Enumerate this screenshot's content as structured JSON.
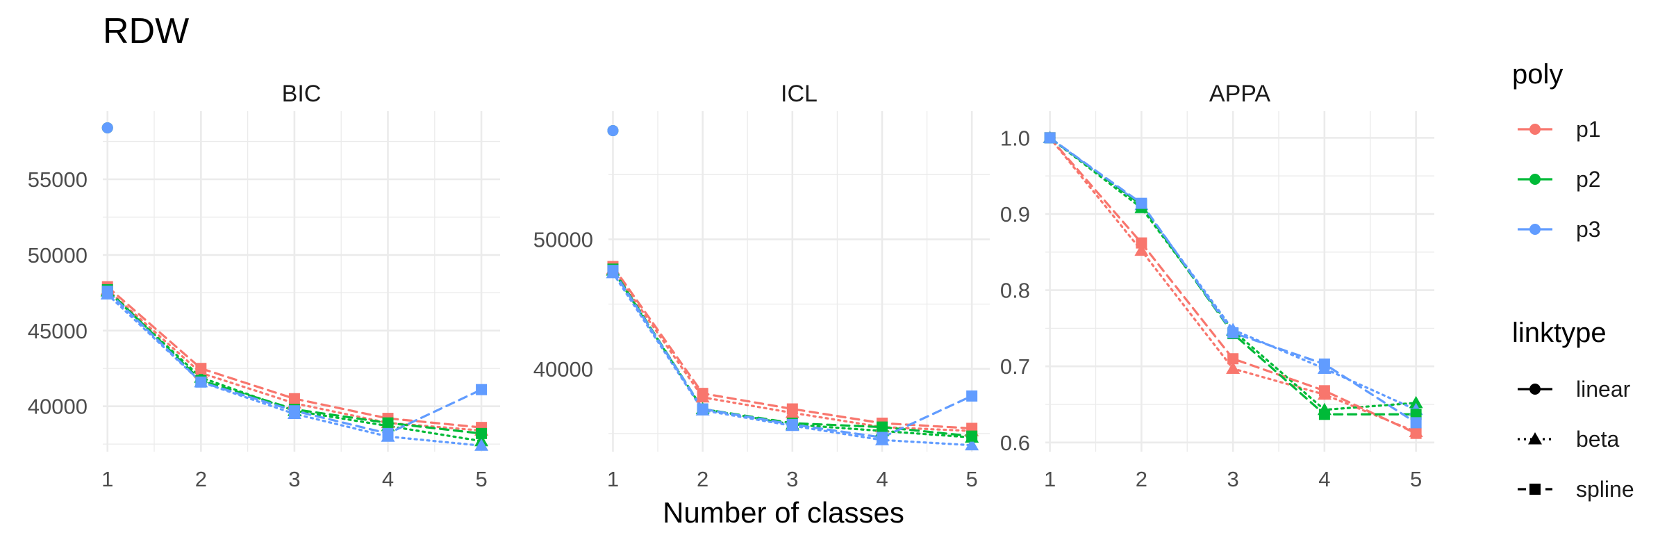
{
  "chart_data": {
    "type": "line",
    "title": "RDW",
    "xlabel": "Number of classes",
    "colors": {
      "p1": "#F8766D",
      "p2": "#00BA38",
      "p3": "#619CFF"
    },
    "legend": {
      "placement": "right",
      "poly_title": "poly",
      "poly_items": [
        "p1",
        "p2",
        "p3"
      ],
      "linktype_title": "linktype",
      "linktype_items": [
        {
          "label": "linear",
          "dash": "solid",
          "shape": "circle"
        },
        {
          "label": "beta",
          "dash": "dotted",
          "shape": "triangle"
        },
        {
          "label": "spline",
          "dash": "dashed",
          "shape": "square"
        }
      ]
    },
    "panels": [
      {
        "title": "BIC",
        "x": [
          1,
          2,
          3,
          4,
          5
        ],
        "xlim": [
          0.95,
          5.2
        ],
        "ylim": [
          37000,
          59500
        ],
        "y_ticks": [
          40000,
          45000,
          50000,
          55000
        ],
        "y_tick_labels": [
          "40000",
          "45000",
          "50000",
          "55000"
        ],
        "x_ticks": [
          1,
          2,
          3,
          4,
          5
        ],
        "x_tick_labels": [
          "1",
          "2",
          "3",
          "4",
          "5"
        ],
        "series": [
          {
            "poly": "p1",
            "linktype": "linear",
            "values": [
              58400,
              null,
              null,
              null,
              null
            ]
          },
          {
            "poly": "p2",
            "linktype": "linear",
            "values": [
              58400,
              null,
              null,
              null,
              null
            ]
          },
          {
            "poly": "p3",
            "linktype": "linear",
            "values": [
              58400,
              null,
              null,
              null,
              null
            ]
          },
          {
            "poly": "p1",
            "linktype": "beta",
            "values": [
              47700,
              42200,
              40200,
              38900,
              38400
            ]
          },
          {
            "poly": "p2",
            "linktype": "beta",
            "values": [
              47600,
              41900,
              39700,
              38700,
              37700
            ]
          },
          {
            "poly": "p3",
            "linktype": "beta",
            "values": [
              47400,
              41600,
              39500,
              38000,
              37400
            ]
          },
          {
            "poly": "p1",
            "linktype": "spline",
            "values": [
              47900,
              42500,
              40500,
              39200,
              38600
            ]
          },
          {
            "poly": "p2",
            "linktype": "spline",
            "values": [
              47700,
              41700,
              39800,
              38900,
              38200
            ]
          },
          {
            "poly": "p3",
            "linktype": "spline",
            "values": [
              47600,
              41600,
              39700,
              38200,
              41100
            ]
          }
        ]
      },
      {
        "title": "ICL",
        "x": [
          1,
          2,
          3,
          4,
          5
        ],
        "xlim": [
          0.95,
          5.2
        ],
        "ylim": [
          33600,
          59900
        ],
        "y_ticks": [
          40000,
          50000
        ],
        "y_tick_labels": [
          "40000",
          "50000"
        ],
        "x_ticks": [
          1,
          2,
          3,
          4,
          5
        ],
        "x_tick_labels": [
          "1",
          "2",
          "3",
          "4",
          "5"
        ],
        "series": [
          {
            "poly": "p1",
            "linktype": "linear",
            "values": [
              58400,
              null,
              null,
              null,
              null
            ]
          },
          {
            "poly": "p2",
            "linktype": "linear",
            "values": [
              58400,
              null,
              null,
              null,
              null
            ]
          },
          {
            "poly": "p3",
            "linktype": "linear",
            "values": [
              58400,
              null,
              null,
              null,
              null
            ]
          },
          {
            "poly": "p1",
            "linktype": "beta",
            "values": [
              47700,
              37800,
              36600,
              35500,
              35200
            ]
          },
          {
            "poly": "p2",
            "linktype": "beta",
            "values": [
              47600,
              36900,
              35700,
              35200,
              34700
            ]
          },
          {
            "poly": "p3",
            "linktype": "beta",
            "values": [
              47400,
              36800,
              35600,
              34500,
              34100
            ]
          },
          {
            "poly": "p1",
            "linktype": "spline",
            "values": [
              47900,
              38100,
              36900,
              35800,
              35400
            ]
          },
          {
            "poly": "p2",
            "linktype": "spline",
            "values": [
              47700,
              36900,
              35800,
              35500,
              34800
            ]
          },
          {
            "poly": "p3",
            "linktype": "spline",
            "values": [
              47600,
              36900,
              35700,
              34700,
              37900
            ]
          }
        ]
      },
      {
        "title": "APPA",
        "x": [
          1,
          2,
          3,
          4,
          5
        ],
        "xlim": [
          0.95,
          5.2
        ],
        "ylim": [
          0.588,
          1.035
        ],
        "y_ticks": [
          0.6,
          0.7,
          0.8,
          0.9,
          1.0
        ],
        "y_tick_labels": [
          "0.6",
          "0.7",
          "0.8",
          "0.9",
          "1.0"
        ],
        "x_ticks": [
          1,
          2,
          3,
          4,
          5
        ],
        "x_tick_labels": [
          "1",
          "2",
          "3",
          "4",
          "5"
        ],
        "series": [
          {
            "poly": "p1",
            "linktype": "linear",
            "values": [
              1.0,
              null,
              null,
              null,
              null
            ]
          },
          {
            "poly": "p2",
            "linktype": "linear",
            "values": [
              1.0,
              null,
              null,
              null,
              null
            ]
          },
          {
            "poly": "p3",
            "linktype": "linear",
            "values": [
              1.0,
              null,
              null,
              null,
              null
            ]
          },
          {
            "poly": "p1",
            "linktype": "beta",
            "values": [
              1.0,
              0.852,
              0.697,
              0.663,
              0.614
            ]
          },
          {
            "poly": "p2",
            "linktype": "beta",
            "values": [
              1.0,
              0.908,
              0.747,
              0.643,
              0.652
            ]
          },
          {
            "poly": "p3",
            "linktype": "beta",
            "values": [
              1.0,
              0.912,
              0.748,
              0.697,
              0.643
            ]
          },
          {
            "poly": "p1",
            "linktype": "spline",
            "values": [
              1.0,
              0.862,
              0.71,
              0.668,
              0.612
            ]
          },
          {
            "poly": "p2",
            "linktype": "spline",
            "values": [
              1.0,
              0.912,
              0.743,
              0.637,
              0.637
            ]
          },
          {
            "poly": "p3",
            "linktype": "spline",
            "values": [
              1.0,
              0.914,
              0.744,
              0.703,
              0.626
            ]
          }
        ]
      }
    ]
  }
}
